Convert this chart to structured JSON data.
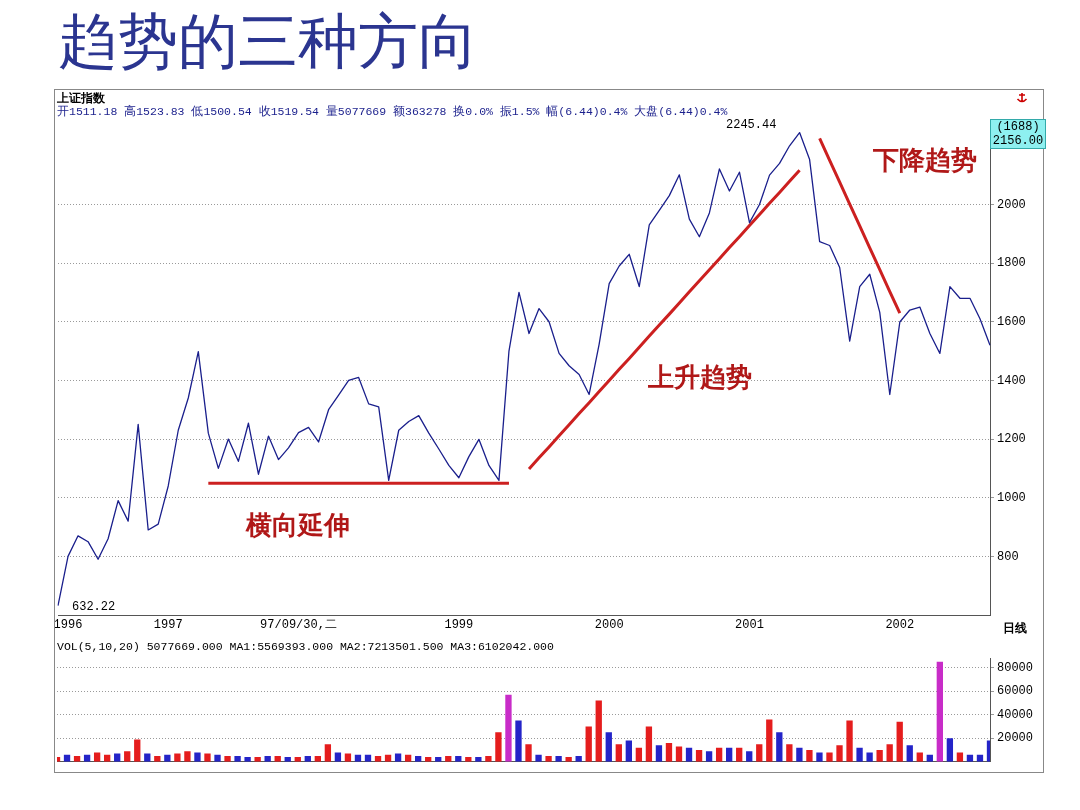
{
  "chart_data": [
    {
      "type": "line",
      "title": "趋势的三种方向",
      "annotations": [
        "上证指数",
        "开1511.18 高1523.83 低1500.54 收1519.54 量5077669 额363278 换0.0% 振1.5% 幅(6.44)0.4% 大盘(6.44)0.4%",
        "(1688)",
        "2156.00",
        "日线",
        "横向延伸",
        "上升趋势",
        "下降趋势",
        "2245.44",
        "632.22"
      ],
      "categories": [
        null,
        "1996",
        null,
        null,
        null,
        null,
        null,
        null,
        null,
        null,
        null,
        "1997",
        null,
        null,
        null,
        null,
        null,
        null,
        null,
        null,
        null,
        null,
        null,
        null,
        "97/09/30,二",
        null,
        null,
        null,
        null,
        null,
        null,
        null,
        null,
        null,
        null,
        null,
        null,
        null,
        null,
        null,
        "1999",
        null,
        null,
        null,
        null,
        null,
        null,
        null,
        null,
        null,
        null,
        null,
        null,
        null,
        null,
        "2000",
        null,
        null,
        null,
        null,
        null,
        null,
        null,
        null,
        null,
        null,
        null,
        null,
        null,
        "2001",
        null,
        null,
        null,
        null,
        null,
        null,
        null,
        null,
        null,
        null,
        null,
        null,
        null,
        null,
        "2002",
        null,
        null,
        null,
        null,
        null,
        null,
        null,
        null,
        null
      ],
      "ylim": [
        600,
        2260
      ],
      "yticks": [
        800,
        1000,
        1200,
        1400,
        1600,
        1800,
        2000
      ],
      "grid": "y",
      "series": [
        {
          "type": "line",
          "color": "#1a1f8c",
          "values": [
            632,
            800,
            870,
            850,
            790,
            860,
            990,
            920,
            1250,
            890,
            910,
            1040,
            1230,
            1340,
            1498,
            1220,
            1100,
            1200,
            1124,
            1254,
            1080,
            1210,
            1130,
            1170,
            1222,
            1240,
            1190,
            1300,
            1350,
            1400,
            1410,
            1320,
            1310,
            1059,
            1230,
            1260,
            1280,
            1220,
            1166,
            1110,
            1068,
            1140,
            1199,
            1110,
            1059,
            1500,
            1700,
            1560,
            1645,
            1600,
            1492,
            1450,
            1420,
            1352,
            1524,
            1730,
            1790,
            1830,
            1720,
            1930,
            1980,
            2030,
            2101,
            1950,
            1890,
            1971,
            2121,
            2046,
            2110,
            1938,
            2000,
            2100,
            2140,
            2200,
            2245,
            2153,
            1873,
            1860,
            1785,
            1534,
            1720,
            1762,
            1632,
            1352,
            1599,
            1640,
            1650,
            1560,
            1492,
            1720,
            1680,
            1680,
            1610,
            1520
          ]
        },
        {
          "type": "line",
          "color": "#cc2020",
          "values": [
            null,
            null,
            null,
            null,
            null,
            null,
            null,
            null,
            null,
            null,
            null,
            null,
            null,
            null,
            null,
            1049,
            1049,
            1049,
            1049,
            1049,
            1049,
            1049,
            1049,
            1049,
            1049,
            1049,
            1049,
            1049,
            1049,
            1049,
            1049,
            1049,
            1049,
            1049,
            1049,
            1049,
            1049,
            1049,
            1049,
            1049,
            1049,
            1049,
            1049,
            1049,
            1049,
            1049,
            null,
            null,
            null,
            null,
            null,
            null,
            null,
            null,
            null,
            null,
            null,
            null,
            null,
            null,
            null,
            null,
            null,
            null,
            null,
            null,
            null,
            null,
            null,
            null,
            null,
            null,
            null,
            null,
            null,
            null,
            null,
            null,
            null,
            null,
            null,
            null,
            null,
            null,
            null,
            null,
            null,
            null,
            null,
            null,
            null,
            null,
            null,
            null
          ]
        },
        {
          "type": "line",
          "color": "#cc2020",
          "values": [
            null,
            null,
            null,
            null,
            null,
            null,
            null,
            null,
            null,
            null,
            null,
            null,
            null,
            null,
            null,
            null,
            null,
            null,
            null,
            null,
            null,
            null,
            null,
            null,
            null,
            null,
            null,
            null,
            null,
            null,
            null,
            null,
            null,
            null,
            null,
            null,
            null,
            null,
            null,
            null,
            null,
            null,
            null,
            null,
            null,
            null,
            null,
            1098,
            1136,
            1173,
            1211,
            1249,
            1287,
            1324,
            1362,
            1400,
            1438,
            1475,
            1513,
            1551,
            1589,
            1626,
            1664,
            1702,
            1740,
            1777,
            1815,
            1853,
            1890,
            1928,
            1966,
            2004,
            2041,
            2079,
            2117,
            null,
            null,
            null,
            null,
            null,
            null,
            null,
            null,
            null,
            null,
            null,
            null,
            null,
            null,
            null,
            null,
            null,
            null,
            null
          ]
        },
        {
          "type": "line",
          "color": "#cc2020",
          "values": [
            null,
            null,
            null,
            null,
            null,
            null,
            null,
            null,
            null,
            null,
            null,
            null,
            null,
            null,
            null,
            null,
            null,
            null,
            null,
            null,
            null,
            null,
            null,
            null,
            null,
            null,
            null,
            null,
            null,
            null,
            null,
            null,
            null,
            null,
            null,
            null,
            null,
            null,
            null,
            null,
            null,
            null,
            null,
            null,
            null,
            null,
            null,
            null,
            null,
            null,
            null,
            null,
            null,
            null,
            null,
            null,
            null,
            null,
            null,
            null,
            null,
            null,
            null,
            null,
            null,
            null,
            null,
            null,
            null,
            null,
            null,
            null,
            null,
            null,
            null,
            null,
            2225,
            2150,
            2076,
            2001,
            1927,
            1852,
            1778,
            1703,
            1629,
            null,
            null,
            null,
            null,
            null,
            null,
            null,
            null,
            null
          ]
        }
      ]
    },
    {
      "type": "bar",
      "annotations": [
        "VOL(5,10,20) 5077669.000 MA1:5569393.000 MA2:7213501.500 MA3:6102042.000"
      ],
      "categories": [
        null,
        null,
        null,
        null,
        null,
        null,
        null,
        null,
        null,
        null,
        null,
        null,
        null,
        null,
        null,
        null,
        null,
        null,
        null,
        null,
        null,
        null,
        null,
        null,
        null,
        null,
        null,
        null,
        null,
        null,
        null,
        null,
        null,
        null,
        null,
        null,
        null,
        null,
        null,
        null,
        null,
        null,
        null,
        null,
        null,
        null,
        null,
        null,
        null,
        null,
        null,
        null,
        null,
        null,
        null,
        null,
        null,
        null,
        null,
        null,
        null,
        null,
        null,
        null,
        null,
        null,
        null,
        null,
        null,
        null,
        null,
        null,
        null,
        null,
        null,
        null,
        null,
        null,
        null,
        null,
        null,
        null,
        null,
        null,
        null,
        null,
        null,
        null,
        null,
        null,
        null,
        null,
        null,
        null
      ],
      "ylim": [
        0,
        88000
      ],
      "yticks": [
        20000,
        40000,
        60000,
        80000
      ],
      "grid": "y",
      "tick_labels": "y",
      "values": [
        4000,
        6000,
        5000,
        6000,
        8000,
        6000,
        7000,
        9000,
        19000,
        7000,
        5000,
        6000,
        7000,
        9000,
        8000,
        7000,
        6000,
        5000,
        5000,
        4000,
        4000,
        5000,
        5000,
        4000,
        4000,
        5000,
        5000,
        15000,
        8000,
        7000,
        6000,
        6000,
        5000,
        6000,
        7000,
        6000,
        5000,
        4000,
        4000,
        5000,
        5000,
        4000,
        4000,
        5000,
        25000,
        57000,
        35000,
        15000,
        6000,
        5000,
        5000,
        4000,
        5000,
        30000,
        52000,
        25000,
        15000,
        18000,
        12000,
        30000,
        14000,
        16000,
        13000,
        12000,
        10000,
        9000,
        12000,
        12000,
        12000,
        9000,
        15000,
        36000,
        25000,
        15000,
        12000,
        10000,
        8000,
        8000,
        14000,
        35000,
        12000,
        8000,
        10000,
        15000,
        34000,
        14000,
        8000,
        6000,
        85000,
        20000,
        8000,
        6000,
        6000,
        18000
      ],
      "colors": [
        "#e51d1d",
        "#2424c8",
        "#e51d1d",
        "#2424c8",
        "#e51d1d",
        "#e51d1d",
        "#2424c8",
        "#e51d1d",
        "#e51d1d",
        "#2424c8",
        "#e51d1d",
        "#2424c8",
        "#e51d1d",
        "#e51d1d",
        "#2424c8",
        "#e51d1d",
        "#2424c8",
        "#e51d1d",
        "#2424c8",
        "#2424c8",
        "#e51d1d",
        "#2424c8",
        "#e51d1d",
        "#2424c8",
        "#e51d1d",
        "#2424c8",
        "#e51d1d",
        "#e51d1d",
        "#2424c8",
        "#e51d1d",
        "#2424c8",
        "#2424c8",
        "#e51d1d",
        "#e51d1d",
        "#2424c8",
        "#e51d1d",
        "#2424c8",
        "#e51d1d",
        "#2424c8",
        "#e51d1d",
        "#2424c8",
        "#e51d1d",
        "#2424c8",
        "#e51d1d",
        "#e51d1d",
        "#c82cc8",
        "#2424c8",
        "#e51d1d",
        "#2424c8",
        "#e51d1d",
        "#2424c8",
        "#e51d1d",
        "#2424c8",
        "#e51d1d",
        "#e51d1d",
        "#2424c8",
        "#e51d1d",
        "#2424c8",
        "#e51d1d",
        "#e51d1d",
        "#2424c8",
        "#e51d1d",
        "#e51d1d",
        "#2424c8",
        "#e51d1d",
        "#2424c8",
        "#e51d1d",
        "#2424c8",
        "#e51d1d",
        "#2424c8",
        "#e51d1d",
        "#e51d1d",
        "#2424c8",
        "#e51d1d",
        "#2424c8",
        "#e51d1d",
        "#2424c8",
        "#e51d1d",
        "#e51d1d",
        "#e51d1d",
        "#2424c8",
        "#2424c8",
        "#e51d1d",
        "#e51d1d",
        "#e51d1d",
        "#2424c8",
        "#e51d1d",
        "#2424c8",
        "#c82cc8",
        "#2424c8",
        "#e51d1d",
        "#2424c8",
        "#2424c8",
        "#2424c8"
      ]
    }
  ]
}
